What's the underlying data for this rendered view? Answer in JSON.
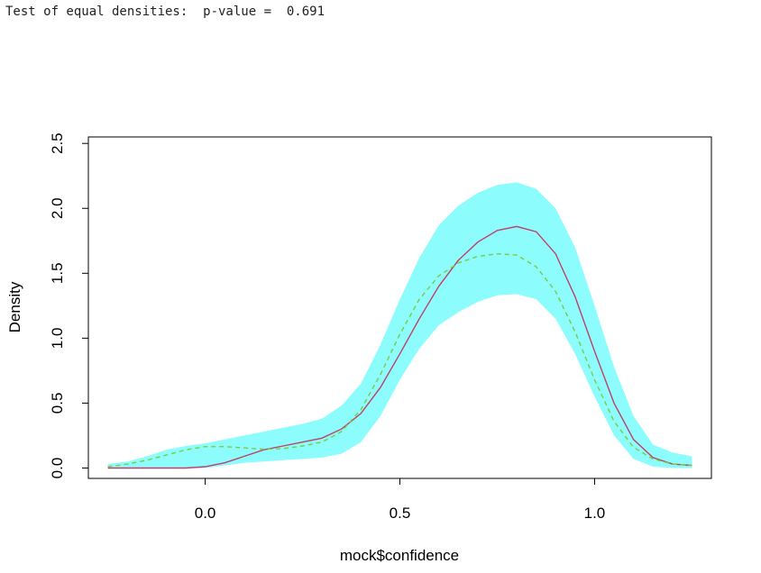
{
  "console": {
    "output_line": "Test of equal densities:  p-value =  0.691"
  },
  "chart_data": {
    "type": "area",
    "title": "",
    "xlabel": "mock$confidence",
    "ylabel": "Density",
    "xlim": [
      -0.3,
      1.3
    ],
    "ylim": [
      -0.08,
      2.55
    ],
    "x_ticks": [
      0.0,
      0.5,
      1.0
    ],
    "x_tick_labels": [
      "0.0",
      "0.5",
      "1.0"
    ],
    "y_ticks": [
      0.0,
      0.5,
      1.0,
      1.5,
      2.0,
      2.5
    ],
    "y_tick_labels": [
      "0.0",
      "0.5",
      "1.0",
      "1.5",
      "2.0",
      "2.5"
    ],
    "grid": false,
    "legend": "none",
    "colors": {
      "band": "#8cfcfc",
      "series1": "#c0406a",
      "series2": "#7ccd3c"
    },
    "band": {
      "x": [
        -0.25,
        -0.2,
        -0.15,
        -0.1,
        -0.05,
        0.0,
        0.05,
        0.1,
        0.15,
        0.2,
        0.25,
        0.3,
        0.35,
        0.4,
        0.45,
        0.5,
        0.55,
        0.6,
        0.65,
        0.7,
        0.75,
        0.8,
        0.85,
        0.9,
        0.95,
        1.0,
        1.05,
        1.1,
        1.15,
        1.2,
        1.25
      ],
      "upper": [
        0.03,
        0.05,
        0.09,
        0.14,
        0.17,
        0.19,
        0.22,
        0.25,
        0.28,
        0.31,
        0.34,
        0.38,
        0.48,
        0.65,
        0.95,
        1.3,
        1.62,
        1.87,
        2.02,
        2.12,
        2.18,
        2.2,
        2.15,
        2.0,
        1.7,
        1.25,
        0.78,
        0.4,
        0.18,
        0.12,
        0.09
      ],
      "lower": [
        0.0,
        0.0,
        0.0,
        0.0,
        0.0,
        0.0,
        0.02,
        0.04,
        0.05,
        0.06,
        0.07,
        0.08,
        0.11,
        0.2,
        0.4,
        0.68,
        0.92,
        1.1,
        1.2,
        1.28,
        1.33,
        1.34,
        1.3,
        1.15,
        0.88,
        0.55,
        0.25,
        0.07,
        0.01,
        0.0,
        0.0
      ]
    },
    "series": [
      {
        "style": "solid",
        "x": [
          -0.25,
          -0.2,
          -0.15,
          -0.1,
          -0.05,
          0.0,
          0.05,
          0.1,
          0.15,
          0.2,
          0.25,
          0.3,
          0.35,
          0.4,
          0.45,
          0.5,
          0.55,
          0.6,
          0.65,
          0.7,
          0.75,
          0.8,
          0.85,
          0.9,
          0.95,
          1.0,
          1.05,
          1.1,
          1.15,
          1.2,
          1.25
        ],
        "values": [
          0.0,
          0.0,
          0.0,
          0.0,
          0.0,
          0.01,
          0.04,
          0.09,
          0.14,
          0.17,
          0.2,
          0.23,
          0.3,
          0.42,
          0.62,
          0.88,
          1.15,
          1.4,
          1.6,
          1.74,
          1.83,
          1.86,
          1.82,
          1.65,
          1.32,
          0.9,
          0.5,
          0.22,
          0.08,
          0.03,
          0.02
        ]
      },
      {
        "style": "dashed",
        "x": [
          -0.25,
          -0.2,
          -0.15,
          -0.1,
          -0.05,
          0.0,
          0.05,
          0.1,
          0.15,
          0.2,
          0.25,
          0.3,
          0.35,
          0.4,
          0.45,
          0.5,
          0.55,
          0.6,
          0.65,
          0.7,
          0.75,
          0.8,
          0.85,
          0.9,
          0.95,
          1.0,
          1.05,
          1.1,
          1.15,
          1.2,
          1.25
        ],
        "values": [
          0.01,
          0.03,
          0.06,
          0.1,
          0.14,
          0.165,
          0.165,
          0.155,
          0.145,
          0.15,
          0.17,
          0.2,
          0.28,
          0.45,
          0.72,
          1.03,
          1.3,
          1.48,
          1.58,
          1.63,
          1.65,
          1.64,
          1.55,
          1.36,
          1.05,
          0.68,
          0.36,
          0.16,
          0.07,
          0.03,
          0.02
        ]
      }
    ]
  }
}
